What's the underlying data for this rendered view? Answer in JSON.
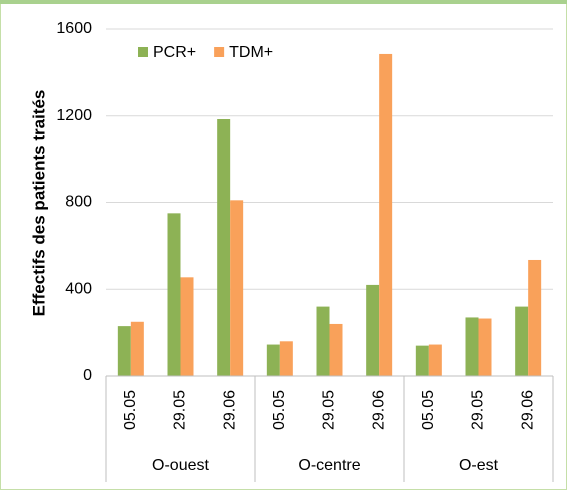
{
  "chart_data": {
    "type": "bar",
    "y_label": "Effectifs des patients traités",
    "categories": [
      "05.05",
      "29.05",
      "29.06",
      "05.05",
      "29.05",
      "29.06",
      "05.05",
      "29.05",
      "29.06"
    ],
    "groups": [
      "O-ouest",
      "O-centre",
      "O-est"
    ],
    "series": [
      {
        "name": "PCR+",
        "color": "#8db255",
        "values": [
          230,
          750,
          1185,
          145,
          320,
          420,
          140,
          270,
          320
        ]
      },
      {
        "name": "TDM+",
        "color": "#f9a15a",
        "values": [
          250,
          455,
          810,
          160,
          240,
          1485,
          145,
          265,
          535
        ]
      }
    ],
    "ylim": [
      0,
      1600
    ],
    "yticks": [
      0,
      400,
      800,
      1200,
      1600
    ],
    "grid": true,
    "legend": "top-left"
  }
}
